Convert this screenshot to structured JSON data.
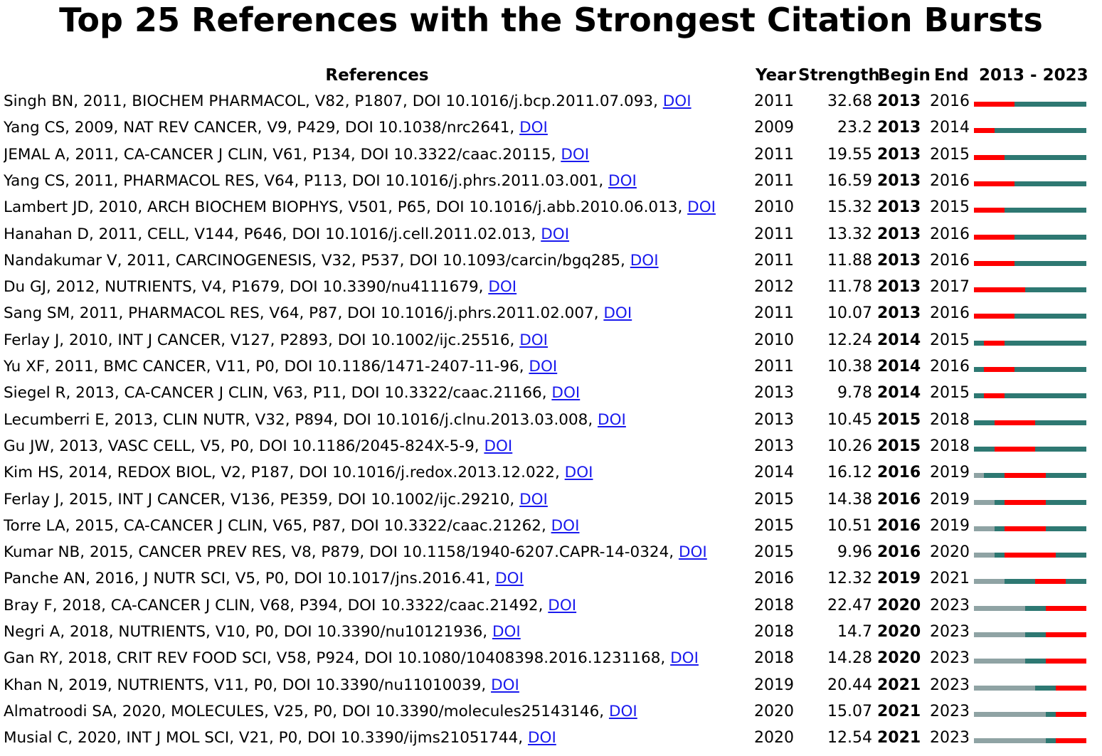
{
  "title": "Top 25 References with the Strongest Citation Bursts",
  "headers": {
    "references": "References",
    "year": "Year",
    "strength": "Strength",
    "begin": "Begin",
    "end": "End",
    "range": "2013 - 2023"
  },
  "colors": {
    "burst": "#ff0000",
    "active": "#2e7872",
    "inactive": "#8fa3a4",
    "link": "#1a1aee"
  },
  "chart_data": {
    "type": "table",
    "range_start": 2013,
    "range_end": 2023,
    "rows": [
      {
        "ref": "Singh BN, 2011, BIOCHEM PHARMACOL, V82, P1807, DOI 10.1016/j.bcp.2011.07.093,",
        "link": "DOI",
        "year": "2011",
        "strength": "32.68",
        "begin": "2013",
        "end": "2016"
      },
      {
        "ref": "Yang CS, 2009, NAT REV CANCER, V9, P429, DOI 10.1038/nrc2641,",
        "link": "DOI",
        "year": "2009",
        "strength": "23.2",
        "begin": "2013",
        "end": "2014"
      },
      {
        "ref": "JEMAL A, 2011, CA-CANCER J CLIN, V61, P134, DOI 10.3322/caac.20115,",
        "link": "DOI",
        "year": "2011",
        "strength": "19.55",
        "begin": "2013",
        "end": "2015"
      },
      {
        "ref": "Yang CS, 2011, PHARMACOL RES, V64, P113, DOI 10.1016/j.phrs.2011.03.001,",
        "link": "DOI",
        "year": "2011",
        "strength": "16.59",
        "begin": "2013",
        "end": "2016"
      },
      {
        "ref": "Lambert JD, 2010, ARCH BIOCHEM BIOPHYS, V501, P65, DOI 10.1016/j.abb.2010.06.013,",
        "link": "DOI",
        "year": "2010",
        "strength": "15.32",
        "begin": "2013",
        "end": "2015"
      },
      {
        "ref": "Hanahan D, 2011, CELL, V144, P646, DOI 10.1016/j.cell.2011.02.013,",
        "link": "DOI",
        "year": "2011",
        "strength": "13.32",
        "begin": "2013",
        "end": "2016"
      },
      {
        "ref": "Nandakumar V, 2011, CARCINOGENESIS, V32, P537, DOI 10.1093/carcin/bgq285,",
        "link": "DOI",
        "year": "2011",
        "strength": "11.88",
        "begin": "2013",
        "end": "2016"
      },
      {
        "ref": "Du GJ, 2012, NUTRIENTS, V4, P1679, DOI 10.3390/nu4111679,",
        "link": "DOI",
        "year": "2012",
        "strength": "11.78",
        "begin": "2013",
        "end": "2017"
      },
      {
        "ref": "Sang SM, 2011, PHARMACOL RES, V64, P87, DOI 10.1016/j.phrs.2011.02.007,",
        "link": "DOI",
        "year": "2011",
        "strength": "10.07",
        "begin": "2013",
        "end": "2016"
      },
      {
        "ref": "Ferlay J, 2010, INT J CANCER, V127, P2893, DOI 10.1002/ijc.25516,",
        "link": "DOI",
        "year": "2010",
        "strength": "12.24",
        "begin": "2014",
        "end": "2015"
      },
      {
        "ref": "Yu XF, 2011, BMC CANCER, V11, P0, DOI 10.1186/1471-2407-11-96,",
        "link": "DOI",
        "year": "2011",
        "strength": "10.38",
        "begin": "2014",
        "end": "2016"
      },
      {
        "ref": "Siegel R, 2013, CA-CANCER J CLIN, V63, P11, DOI 10.3322/caac.21166,",
        "link": "DOI",
        "year": "2013",
        "strength": "9.78",
        "begin": "2014",
        "end": "2015"
      },
      {
        "ref": "Lecumberri E, 2013, CLIN NUTR, V32, P894, DOI 10.1016/j.clnu.2013.03.008,",
        "link": "DOI",
        "year": "2013",
        "strength": "10.45",
        "begin": "2015",
        "end": "2018"
      },
      {
        "ref": "Gu JW, 2013, VASC CELL, V5, P0, DOI 10.1186/2045-824X-5-9,",
        "link": "DOI",
        "year": "2013",
        "strength": "10.26",
        "begin": "2015",
        "end": "2018"
      },
      {
        "ref": "Kim HS, 2014, REDOX BIOL, V2, P187, DOI 10.1016/j.redox.2013.12.022,",
        "link": "DOI",
        "year": "2014",
        "strength": "16.12",
        "begin": "2016",
        "end": "2019"
      },
      {
        "ref": "Ferlay J, 2015, INT J CANCER, V136, PE359, DOI 10.1002/ijc.29210,",
        "link": "DOI",
        "year": "2015",
        "strength": "14.38",
        "begin": "2016",
        "end": "2019"
      },
      {
        "ref": "Torre LA, 2015, CA-CANCER J CLIN, V65, P87, DOI 10.3322/caac.21262,",
        "link": "DOI",
        "year": "2015",
        "strength": "10.51",
        "begin": "2016",
        "end": "2019"
      },
      {
        "ref": "Kumar NB, 2015, CANCER PREV RES, V8, P879, DOI 10.1158/1940-6207.CAPR-14-0324,",
        "link": "DOI",
        "year": "2015",
        "strength": "9.96",
        "begin": "2016",
        "end": "2020"
      },
      {
        "ref": "Panche AN, 2016, J NUTR SCI, V5, P0, DOI 10.1017/jns.2016.41,",
        "link": "DOI",
        "year": "2016",
        "strength": "12.32",
        "begin": "2019",
        "end": "2021"
      },
      {
        "ref": "Bray F, 2018, CA-CANCER J CLIN, V68, P394, DOI 10.3322/caac.21492,",
        "link": "DOI",
        "year": "2018",
        "strength": "22.47",
        "begin": "2020",
        "end": "2023"
      },
      {
        "ref": "Negri A, 2018, NUTRIENTS, V10, P0, DOI 10.3390/nu10121936,",
        "link": "DOI",
        "year": "2018",
        "strength": "14.7",
        "begin": "2020",
        "end": "2023"
      },
      {
        "ref": "Gan RY, 2018, CRIT REV FOOD SCI, V58, P924, DOI 10.1080/10408398.2016.1231168,",
        "link": "DOI",
        "year": "2018",
        "strength": "14.28",
        "begin": "2020",
        "end": "2023"
      },
      {
        "ref": "Khan N, 2019, NUTRIENTS, V11, P0, DOI 10.3390/nu11010039,",
        "link": "DOI",
        "year": "2019",
        "strength": "20.44",
        "begin": "2021",
        "end": "2023"
      },
      {
        "ref": "Almatroodi SA, 2020, MOLECULES, V25, P0, DOI 10.3390/molecules25143146,",
        "link": "DOI",
        "year": "2020",
        "strength": "15.07",
        "begin": "2021",
        "end": "2023"
      },
      {
        "ref": "Musial C, 2020, INT J MOL SCI, V21, P0, DOI 10.3390/ijms21051744,",
        "link": "DOI",
        "year": "2020",
        "strength": "12.54",
        "begin": "2021",
        "end": "2023"
      }
    ]
  }
}
